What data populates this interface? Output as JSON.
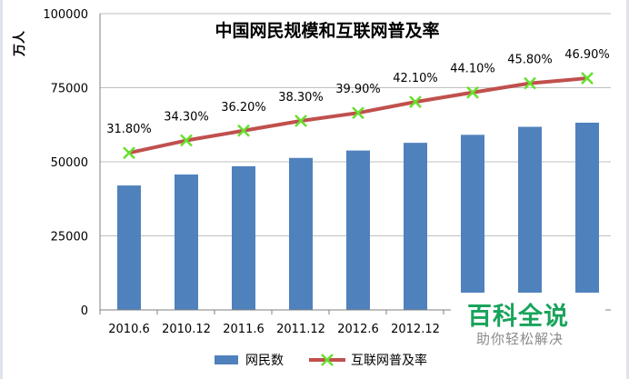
{
  "chart_data": {
    "type": "bar",
    "title": "中国网民规模和互联网普及率",
    "ylabel": "万人",
    "xlabel": "",
    "categories": [
      "2010.6",
      "2010.12",
      "2011.6",
      "2011.12",
      "2012.6",
      "2012.12",
      "",
      "",
      ""
    ],
    "ylim": [
      0,
      100000
    ],
    "yticks": [
      "0",
      "25000",
      "50000",
      "75000",
      "100000"
    ],
    "grid": true,
    "legend_position": "bottom",
    "series": [
      {
        "name": "网民数",
        "type": "bar",
        "color": "#4f81bd",
        "values": [
          42000,
          45700,
          48500,
          51300,
          53800,
          56400,
          59100,
          61800,
          63200
        ]
      },
      {
        "name": "互联网普及率",
        "type": "line",
        "color": "#c0504d",
        "marker_color": "#66e02c",
        "labels": [
          "31.80%",
          "34.30%",
          "36.20%",
          "38.30%",
          "39.90%",
          "42.10%",
          "44.10%",
          "45.80%",
          "46.90%"
        ],
        "values": [
          53000,
          57200,
          60500,
          63800,
          66500,
          70200,
          73400,
          76500,
          78200
        ]
      }
    ]
  },
  "watermark": {
    "main": "百科全说",
    "sub": "助你轻松解决"
  }
}
